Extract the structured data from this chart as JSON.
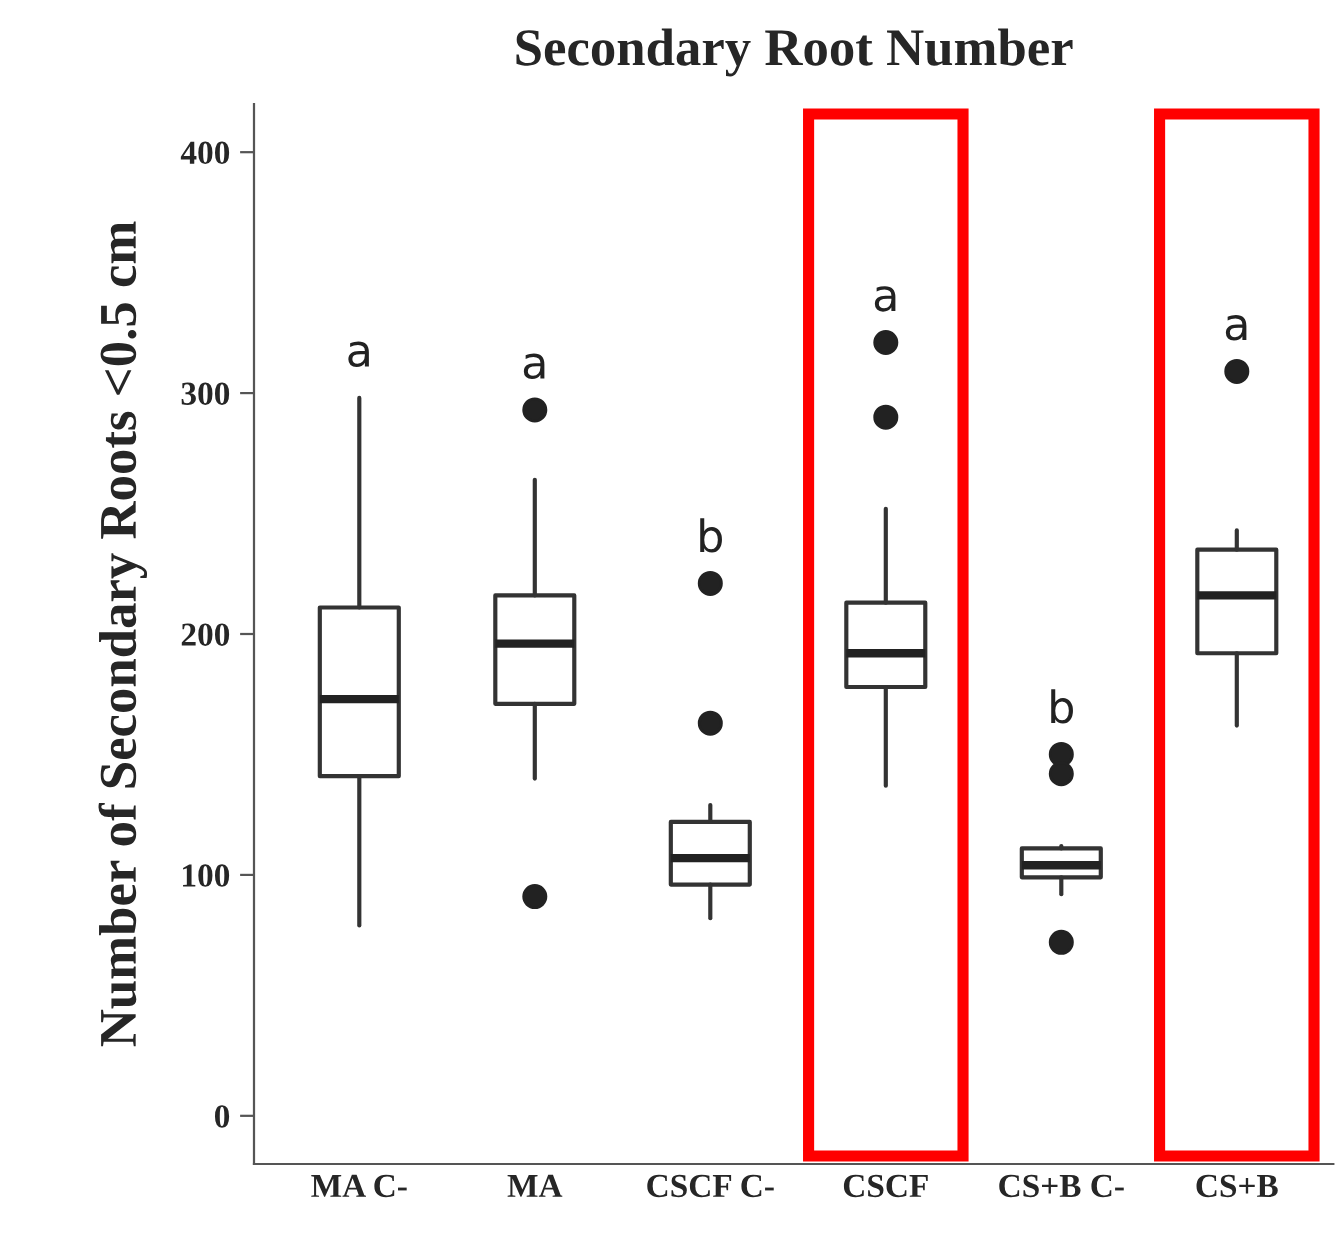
{
  "chart_data": {
    "type": "box",
    "title": "Secondary Root Number",
    "ylabel": "Number of Secondary Roots <0.5 cm",
    "categories": [
      "MA C-",
      "MA",
      "CSCF C-",
      "CSCF",
      "CS+B C-",
      "CS+B"
    ],
    "boxes": [
      {
        "low": 79,
        "q1": 141,
        "median": 173,
        "q3": 211,
        "high": 298
      },
      {
        "low": 140,
        "q1": 171,
        "median": 196,
        "q3": 216,
        "high": 264,
        "outliers": [
          293,
          91
        ]
      },
      {
        "low": 82,
        "q1": 96,
        "median": 107,
        "q3": 122,
        "high": 129,
        "outliers": [
          221,
          163
        ]
      },
      {
        "low": 137,
        "q1": 178,
        "median": 192,
        "q3": 213,
        "high": 252,
        "outliers": [
          321,
          290
        ]
      },
      {
        "low": 92,
        "q1": 99,
        "median": 104,
        "q3": 111,
        "high": 112,
        "outliers": [
          150,
          142,
          72
        ]
      },
      {
        "low": 162,
        "q1": 192,
        "median": 216,
        "q3": 235,
        "high": 243,
        "outliers": [
          309
        ]
      }
    ],
    "annotations": [
      "a",
      "a",
      "b",
      "a",
      "b",
      "a"
    ],
    "ylim": [
      -20,
      420
    ],
    "yticks": [
      0,
      100,
      200,
      300,
      400
    ],
    "grid": false
  }
}
